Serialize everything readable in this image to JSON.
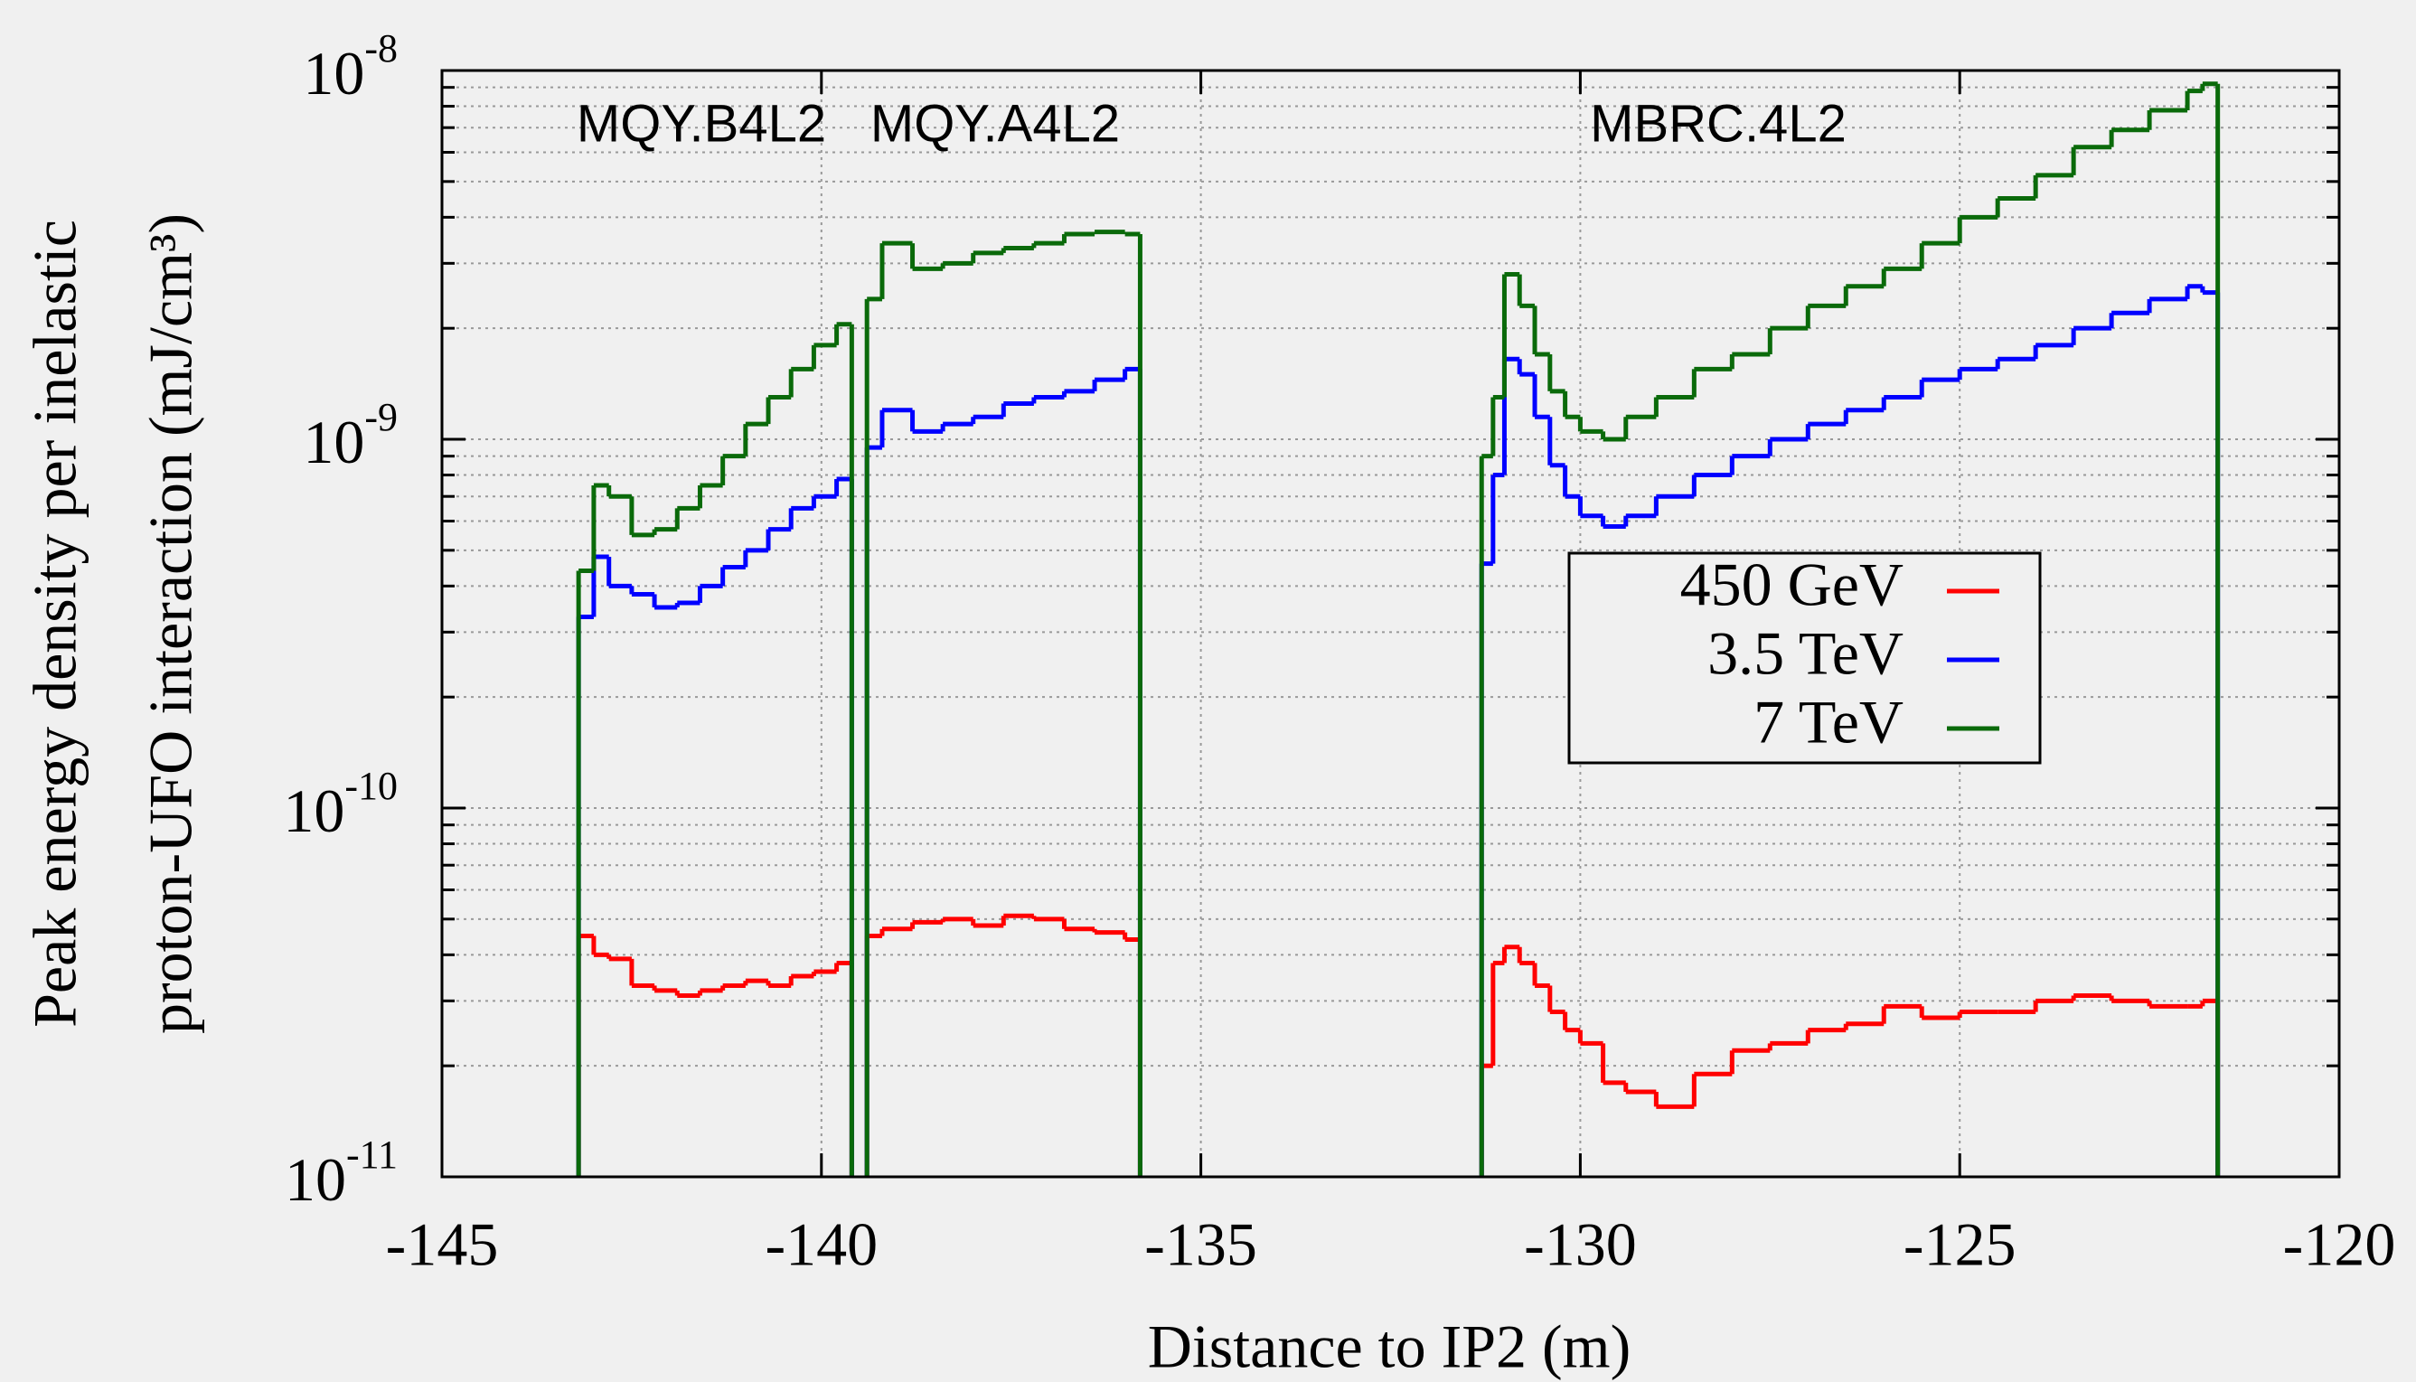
{
  "chart_data": {
    "type": "step",
    "xlabel": "Distance to IP2 (m)",
    "ylabel": [
      "Peak energy density per inelastic",
      "proton-UFO interaction (mJ/cm³)"
    ],
    "annotations": [
      "MQY.B4L2",
      "MQY.A4L2",
      "MBRC.4L2"
    ],
    "log_y": true,
    "grid": true,
    "legend": "right",
    "xlim": [
      -145,
      -120
    ],
    "xticks": [
      -145,
      -140,
      -135,
      -130,
      -125,
      -120
    ],
    "ylim": [
      1e-11,
      1e-08
    ],
    "yticks": [
      {
        "value": 1e-11,
        "label": "10",
        "superscript": "-11"
      },
      {
        "value": 1e-10,
        "label": "10",
        "superscript": "-10"
      },
      {
        "value": 1e-09,
        "label": "10",
        "superscript": "-9"
      },
      {
        "value": 1e-08,
        "label": "10",
        "superscript": "-8"
      }
    ],
    "x": [
      -143.2,
      -143.0,
      -142.8,
      -142.5,
      -142.2,
      -141.9,
      -141.6,
      -141.3,
      -141.0,
      -140.7,
      -140.4,
      -140.1,
      -139.8,
      -139.6,
      -139.4,
      -139.2,
      -138.8,
      -138.4,
      -138.0,
      -137.6,
      -137.2,
      -136.8,
      -136.4,
      -136.0,
      -135.8,
      -131.3,
      -131.15,
      -131.0,
      -130.8,
      -130.6,
      -130.4,
      -130.2,
      -130.0,
      -129.7,
      -129.4,
      -129.0,
      -128.5,
      -128.0,
      -127.5,
      -127.0,
      -126.5,
      -126.0,
      -125.5,
      -125.0,
      -124.5,
      -124.0,
      -123.5,
      -123.0,
      -122.5,
      -122.0,
      -121.8,
      -121.6
    ],
    "series": [
      {
        "name": "450 GeV",
        "color": "#ff0000",
        "values": [
          4.5e-11,
          4e-11,
          3.9e-11,
          3.3e-11,
          3.2e-11,
          3.1e-11,
          3.2e-11,
          3.3e-11,
          3.4e-11,
          3.3e-11,
          3.5e-11,
          3.6e-11,
          3.8e-11,
          null,
          4.5e-11,
          4.7e-11,
          4.9e-11,
          5e-11,
          4.8e-11,
          5.1e-11,
          5e-11,
          4.7e-11,
          4.6e-11,
          4.4e-11,
          null,
          2e-11,
          3.8e-11,
          4.2e-11,
          3.8e-11,
          3.3e-11,
          2.8e-11,
          2.5e-11,
          2.3e-11,
          1.8e-11,
          1.7e-11,
          1.55e-11,
          1.9e-11,
          2.2e-11,
          2.3e-11,
          2.5e-11,
          2.6e-11,
          2.9e-11,
          2.7e-11,
          2.8e-11,
          2.8e-11,
          3e-11,
          3.1e-11,
          3e-11,
          2.9e-11,
          2.9e-11,
          3e-11,
          null
        ]
      },
      {
        "name": "3.5 TeV",
        "color": "#0000ff",
        "values": [
          3.3e-10,
          4.8e-10,
          4e-10,
          3.8e-10,
          3.5e-10,
          3.6e-10,
          4e-10,
          4.5e-10,
          5e-10,
          5.7e-10,
          6.5e-10,
          7e-10,
          7.8e-10,
          null,
          9.5e-10,
          1.2e-09,
          1.05e-09,
          1.1e-09,
          1.15e-09,
          1.25e-09,
          1.3e-09,
          1.35e-09,
          1.45e-09,
          1.55e-09,
          null,
          4.6e-10,
          8e-10,
          1.65e-09,
          1.5e-09,
          1.15e-09,
          8.5e-10,
          7e-10,
          6.2e-10,
          5.8e-10,
          6.2e-10,
          7e-10,
          8e-10,
          9e-10,
          1e-09,
          1.1e-09,
          1.2e-09,
          1.3e-09,
          1.45e-09,
          1.55e-09,
          1.65e-09,
          1.8e-09,
          2e-09,
          2.2e-09,
          2.4e-09,
          2.6e-09,
          2.5e-09,
          null
        ]
      },
      {
        "name": "7 TeV",
        "color": "#0a6a0a",
        "values": [
          4.4e-10,
          7.5e-10,
          7e-10,
          5.5e-10,
          5.7e-10,
          6.5e-10,
          7.5e-10,
          9e-10,
          1.1e-09,
          1.3e-09,
          1.55e-09,
          1.8e-09,
          2.05e-09,
          null,
          2.4e-09,
          3.4e-09,
          2.9e-09,
          3e-09,
          3.2e-09,
          3.3e-09,
          3.4e-09,
          3.6e-09,
          3.65e-09,
          3.6e-09,
          null,
          9e-10,
          1.3e-09,
          2.8e-09,
          2.3e-09,
          1.7e-09,
          1.35e-09,
          1.15e-09,
          1.05e-09,
          1e-09,
          1.15e-09,
          1.3e-09,
          1.55e-09,
          1.7e-09,
          2e-09,
          2.3e-09,
          2.6e-09,
          2.9e-09,
          3.4e-09,
          4e-09,
          4.5e-09,
          5.2e-09,
          6.2e-09,
          6.9e-09,
          7.8e-09,
          8.8e-09,
          9.2e-09,
          null
        ]
      }
    ]
  }
}
